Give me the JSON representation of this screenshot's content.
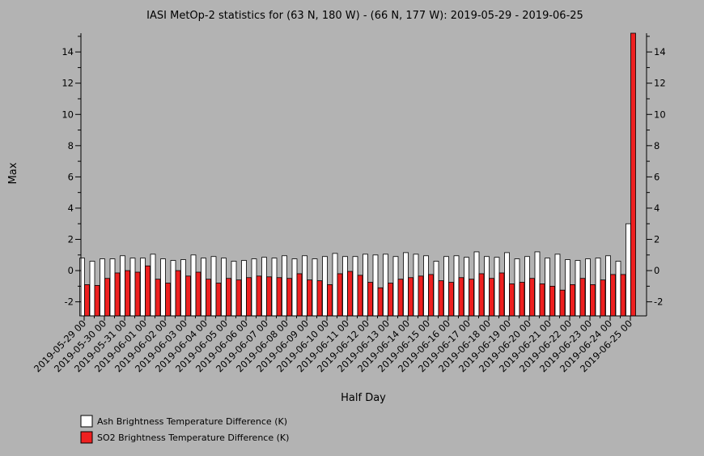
{
  "chart_data": {
    "type": "bar",
    "title": "IASI MetOp-2 statistics for (63 N, 180 W) - (66 N, 177 W): 2019-05-29 - 2019-06-25",
    "xlabel": "Half Day",
    "ylabel": "Max",
    "ylim": [
      -2.9,
      15.2
    ],
    "yticks": [
      -2,
      0,
      2,
      4,
      6,
      8,
      10,
      12,
      14
    ],
    "grid": false,
    "legend_position": "bottom-left",
    "x_tick_labels": [
      "2019-05-29 00",
      "2019-05-30 00",
      "2019-05-31 00",
      "2019-06-01 00",
      "2019-06-02 00",
      "2019-06-03 00",
      "2019-06-04 00",
      "2019-06-05 00",
      "2019-06-06 00",
      "2019-06-07 00",
      "2019-06-08 00",
      "2019-06-09 00",
      "2019-06-10 00",
      "2019-06-11 00",
      "2019-06-12 00",
      "2019-06-13 00",
      "2019-06-14 00",
      "2019-06-15 00",
      "2019-06-16 00",
      "2019-06-17 00",
      "2019-06-18 00",
      "2019-06-19 00",
      "2019-06-20 00",
      "2019-06-21 00",
      "2019-06-22 00",
      "2019-06-23 00",
      "2019-06-24 00",
      "2019-06-25 00"
    ],
    "categories": [
      "2019-05-29 00",
      "2019-05-29 12",
      "2019-05-30 00",
      "2019-05-30 12",
      "2019-05-31 00",
      "2019-05-31 12",
      "2019-06-01 00",
      "2019-06-01 12",
      "2019-06-02 00",
      "2019-06-02 12",
      "2019-06-03 00",
      "2019-06-03 12",
      "2019-06-04 00",
      "2019-06-04 12",
      "2019-06-05 00",
      "2019-06-05 12",
      "2019-06-06 00",
      "2019-06-06 12",
      "2019-06-07 00",
      "2019-06-07 12",
      "2019-06-08 00",
      "2019-06-08 12",
      "2019-06-09 00",
      "2019-06-09 12",
      "2019-06-10 00",
      "2019-06-10 12",
      "2019-06-11 00",
      "2019-06-11 12",
      "2019-06-12 00",
      "2019-06-12 12",
      "2019-06-13 00",
      "2019-06-13 12",
      "2019-06-14 00",
      "2019-06-14 12",
      "2019-06-15 00",
      "2019-06-15 12",
      "2019-06-16 00",
      "2019-06-16 12",
      "2019-06-17 00",
      "2019-06-17 12",
      "2019-06-18 00",
      "2019-06-18 12",
      "2019-06-19 00",
      "2019-06-19 12",
      "2019-06-20 00",
      "2019-06-20 12",
      "2019-06-21 00",
      "2019-06-21 12",
      "2019-06-22 00",
      "2019-06-22 12",
      "2019-06-23 00",
      "2019-06-23 12",
      "2019-06-24 00",
      "2019-06-24 12",
      "2019-06-25 00"
    ],
    "series": [
      {
        "name": "Ash Brightness Temperature Difference (K)",
        "color": "#ffffff",
        "values": [
          0.8,
          0.6,
          0.75,
          0.75,
          0.95,
          0.8,
          0.8,
          1.05,
          0.75,
          0.65,
          0.7,
          1.0,
          0.8,
          0.9,
          0.8,
          0.6,
          0.65,
          0.75,
          0.85,
          0.8,
          0.95,
          0.75,
          0.95,
          0.75,
          0.9,
          1.1,
          0.9,
          0.9,
          1.05,
          1.0,
          1.05,
          0.9,
          1.15,
          1.05,
          0.95,
          0.6,
          0.9,
          0.95,
          0.85,
          1.2,
          0.9,
          0.85,
          1.15,
          0.75,
          0.9,
          1.2,
          0.8,
          1.05,
          0.7,
          0.65,
          0.75,
          0.8,
          0.95,
          0.6,
          3.0
        ]
      },
      {
        "name": "SO2 Brightness Temperature Difference (K)",
        "color": "#ee2020",
        "values": [
          -0.9,
          -0.95,
          -0.5,
          -0.15,
          0.0,
          -0.1,
          0.3,
          -0.55,
          -0.8,
          0.0,
          -0.35,
          -0.1,
          -0.55,
          -0.8,
          -0.5,
          -0.6,
          -0.45,
          -0.35,
          -0.4,
          -0.45,
          -0.5,
          -0.2,
          -0.6,
          -0.65,
          -0.9,
          -0.2,
          -0.05,
          -0.3,
          -0.75,
          -1.1,
          -0.8,
          -0.55,
          -0.45,
          -0.35,
          -0.25,
          -0.65,
          -0.75,
          -0.45,
          -0.55,
          -0.2,
          -0.5,
          -0.15,
          -0.85,
          -0.75,
          -0.5,
          -0.85,
          -1.0,
          -1.25,
          -0.9,
          -0.5,
          -0.9,
          -0.6,
          -0.25,
          -0.25,
          15.2
        ]
      }
    ]
  }
}
